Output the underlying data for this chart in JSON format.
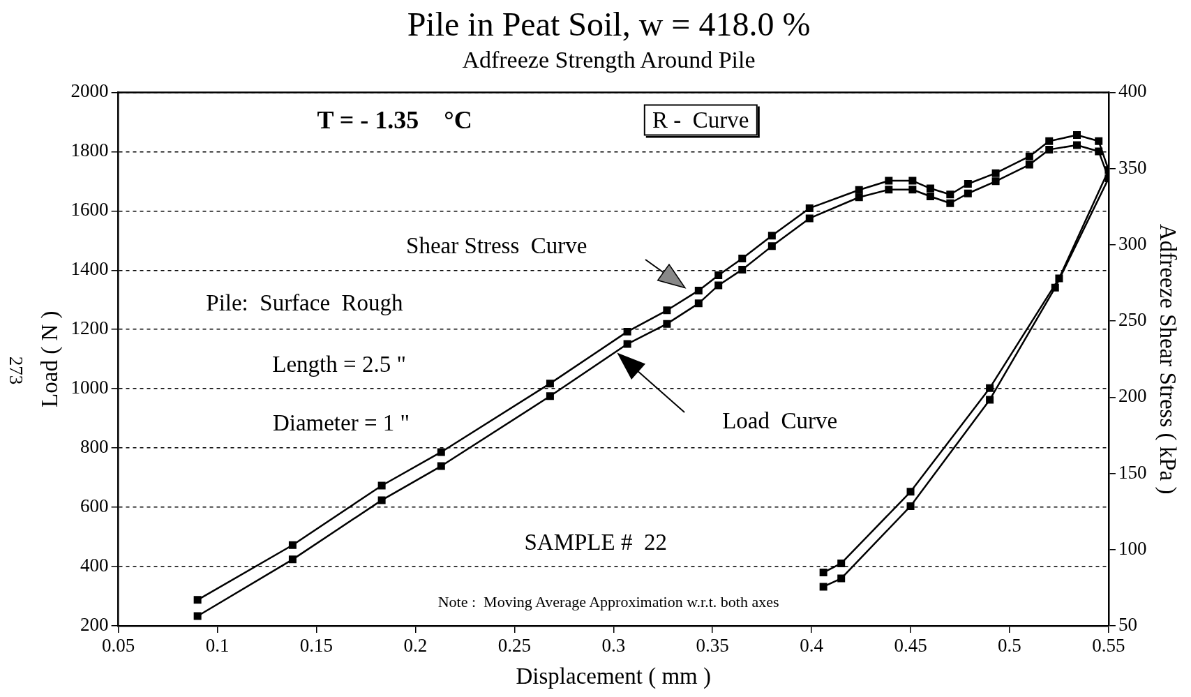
{
  "chart_data": {
    "type": "line",
    "title": "Pile in Peat Soil, w = 418.0 %",
    "subtitle": "Adfreeze Strength Around Pile",
    "xlabel": "Displacement ( mm )",
    "ylabel": "Load ( N )",
    "y2label": "Adfreeze Shear Stress ( kPa )",
    "xlim": [
      0.05,
      0.55
    ],
    "xticks": [
      0.05,
      0.1,
      0.15,
      0.2,
      0.25,
      0.3,
      0.35,
      0.4,
      0.45,
      0.5,
      0.55
    ],
    "ylim": [
      200,
      2000
    ],
    "yticks": [
      200,
      400,
      600,
      800,
      1000,
      1200,
      1400,
      1600,
      1800,
      2000
    ],
    "y2lim": [
      50,
      400
    ],
    "y2ticks": [
      50,
      100,
      150,
      200,
      250,
      300,
      350,
      400
    ],
    "grid": "y",
    "legend": false,
    "marker": "square",
    "line_style": "solid",
    "series": [
      {
        "color": "#000000",
        "axis": "y2",
        "x": [
          0.09,
          0.138,
          0.183,
          0.213,
          0.268,
          0.307,
          0.327,
          0.343,
          0.353,
          0.365,
          0.38,
          0.399,
          0.424,
          0.439,
          0.451,
          0.46,
          0.47,
          0.479,
          0.493,
          0.51,
          0.52,
          0.534,
          0.545,
          0.55,
          0.525,
          0.49,
          0.45,
          0.415,
          0.406
        ],
        "values": [
          67,
          103,
          142,
          164,
          209,
          243,
          257,
          270,
          280,
          291,
          306,
          324,
          336,
          342,
          342,
          337,
          333,
          340,
          347,
          358,
          368,
          372,
          368,
          349,
          278,
          206,
          138,
          91,
          85
        ]
      },
      {
        "color": "#000000",
        "axis": "y",
        "x": [
          0.09,
          0.138,
          0.183,
          0.213,
          0.268,
          0.307,
          0.327,
          0.343,
          0.353,
          0.365,
          0.38,
          0.399,
          0.424,
          0.439,
          0.451,
          0.46,
          0.47,
          0.479,
          0.493,
          0.51,
          0.52,
          0.534,
          0.545,
          0.55,
          0.523,
          0.49,
          0.45,
          0.415,
          0.406
        ],
        "values": [
          233,
          424,
          624,
          739,
          975,
          1151,
          1219,
          1288,
          1349,
          1402,
          1481,
          1575,
          1646,
          1672,
          1672,
          1649,
          1626,
          1659,
          1700,
          1756,
          1807,
          1822,
          1801,
          1710,
          1341,
          963,
          604,
          360,
          332
        ]
      }
    ],
    "annotations": [
      "T = - 1.35    °C",
      "R -  Curve",
      "Pile:  Surface  Rough",
      "Length = 2.5 \"",
      "Diameter = 1 \"",
      "SAMPLE #  22",
      "Note :  Moving Average Approximation w.r.t. both axes",
      "273",
      "Shear Stress  Curve",
      "Load  Curve"
    ]
  }
}
